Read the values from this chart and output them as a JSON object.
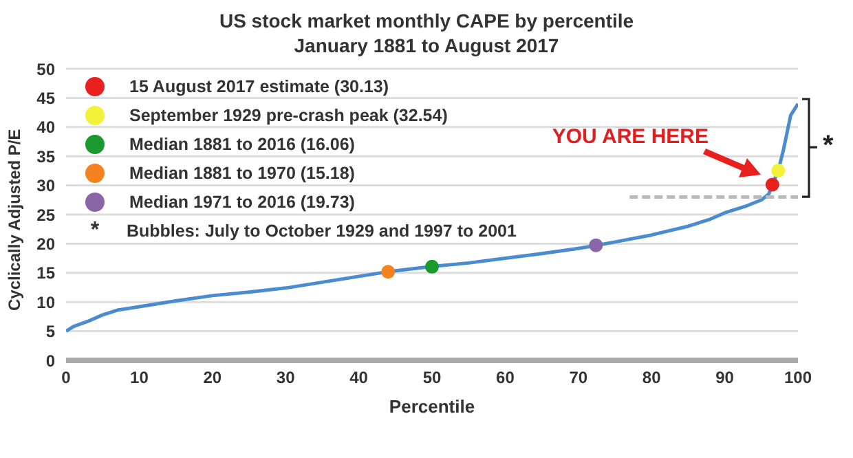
{
  "chart_data": {
    "type": "line",
    "title": "US stock market monthly CAPE by percentile",
    "subtitle": "January 1881 to August 2017",
    "xlabel": "Percentile",
    "ylabel": "Cyclically Adjusted P/E",
    "xlim": [
      0,
      100
    ],
    "xticks": [
      0,
      10,
      20,
      30,
      40,
      50,
      60,
      70,
      80,
      90,
      100
    ],
    "ylim": [
      0,
      50
    ],
    "yticks": [
      0,
      5,
      10,
      15,
      20,
      25,
      30,
      35,
      40,
      45,
      50
    ],
    "grid": "y",
    "legend": "top left",
    "marker": "none",
    "series": [
      {
        "type": "line",
        "color": "#4a8ccf",
        "x": [
          0,
          1,
          3,
          5,
          7,
          10,
          15,
          20,
          25,
          30,
          35,
          40,
          44,
          50,
          55,
          60,
          65,
          70,
          72.4,
          75,
          80,
          85,
          88,
          90,
          93,
          95,
          96,
          96.5,
          97.3,
          98,
          99,
          100
        ],
        "values": [
          5,
          5.8,
          6.7,
          7.8,
          8.6,
          9.2,
          10.2,
          11.1,
          11.7,
          12.4,
          13.4,
          14.4,
          15.2,
          16.1,
          16.7,
          17.5,
          18.3,
          19.2,
          19.7,
          20.3,
          21.5,
          23,
          24.2,
          25.3,
          26.5,
          27.5,
          28.5,
          30.1,
          32.5,
          36,
          42,
          44
        ]
      },
      {
        "type": "line",
        "color": "#bbbbbb",
        "line_style": "dashed",
        "x": [
          77,
          100
        ],
        "values": [
          28,
          28
        ]
      },
      {
        "type": "scatter",
        "marker": "circle",
        "name": "15 August 2017 estimate (30.13)",
        "color": "#e8201e",
        "x": [
          96.5
        ],
        "values": [
          30.13
        ]
      },
      {
        "type": "scatter",
        "marker": "circle",
        "name": "September 1929 pre-crash peak (32.54)",
        "color": "#f2f23a",
        "x": [
          97.3
        ],
        "values": [
          32.54
        ]
      },
      {
        "type": "scatter",
        "marker": "circle",
        "name": "Median 1881 to 2016 (16.06)",
        "color": "#1a9a2e",
        "x": [
          50
        ],
        "values": [
          16.06
        ]
      },
      {
        "type": "scatter",
        "marker": "circle",
        "name": "Median 1881 to 1970 (15.18)",
        "color": "#f5821f",
        "x": [
          44
        ],
        "values": [
          15.18
        ]
      },
      {
        "type": "scatter",
        "marker": "circle",
        "name": "Median 1971 to 2016 (19.73)",
        "color": "#8a65a8",
        "x": [
          72.4
        ],
        "values": [
          19.73
        ]
      }
    ],
    "annotations": [
      "YOU ARE HERE",
      "Bubbles: July to October 1929 and 1997 to 2001",
      "*"
    ]
  }
}
